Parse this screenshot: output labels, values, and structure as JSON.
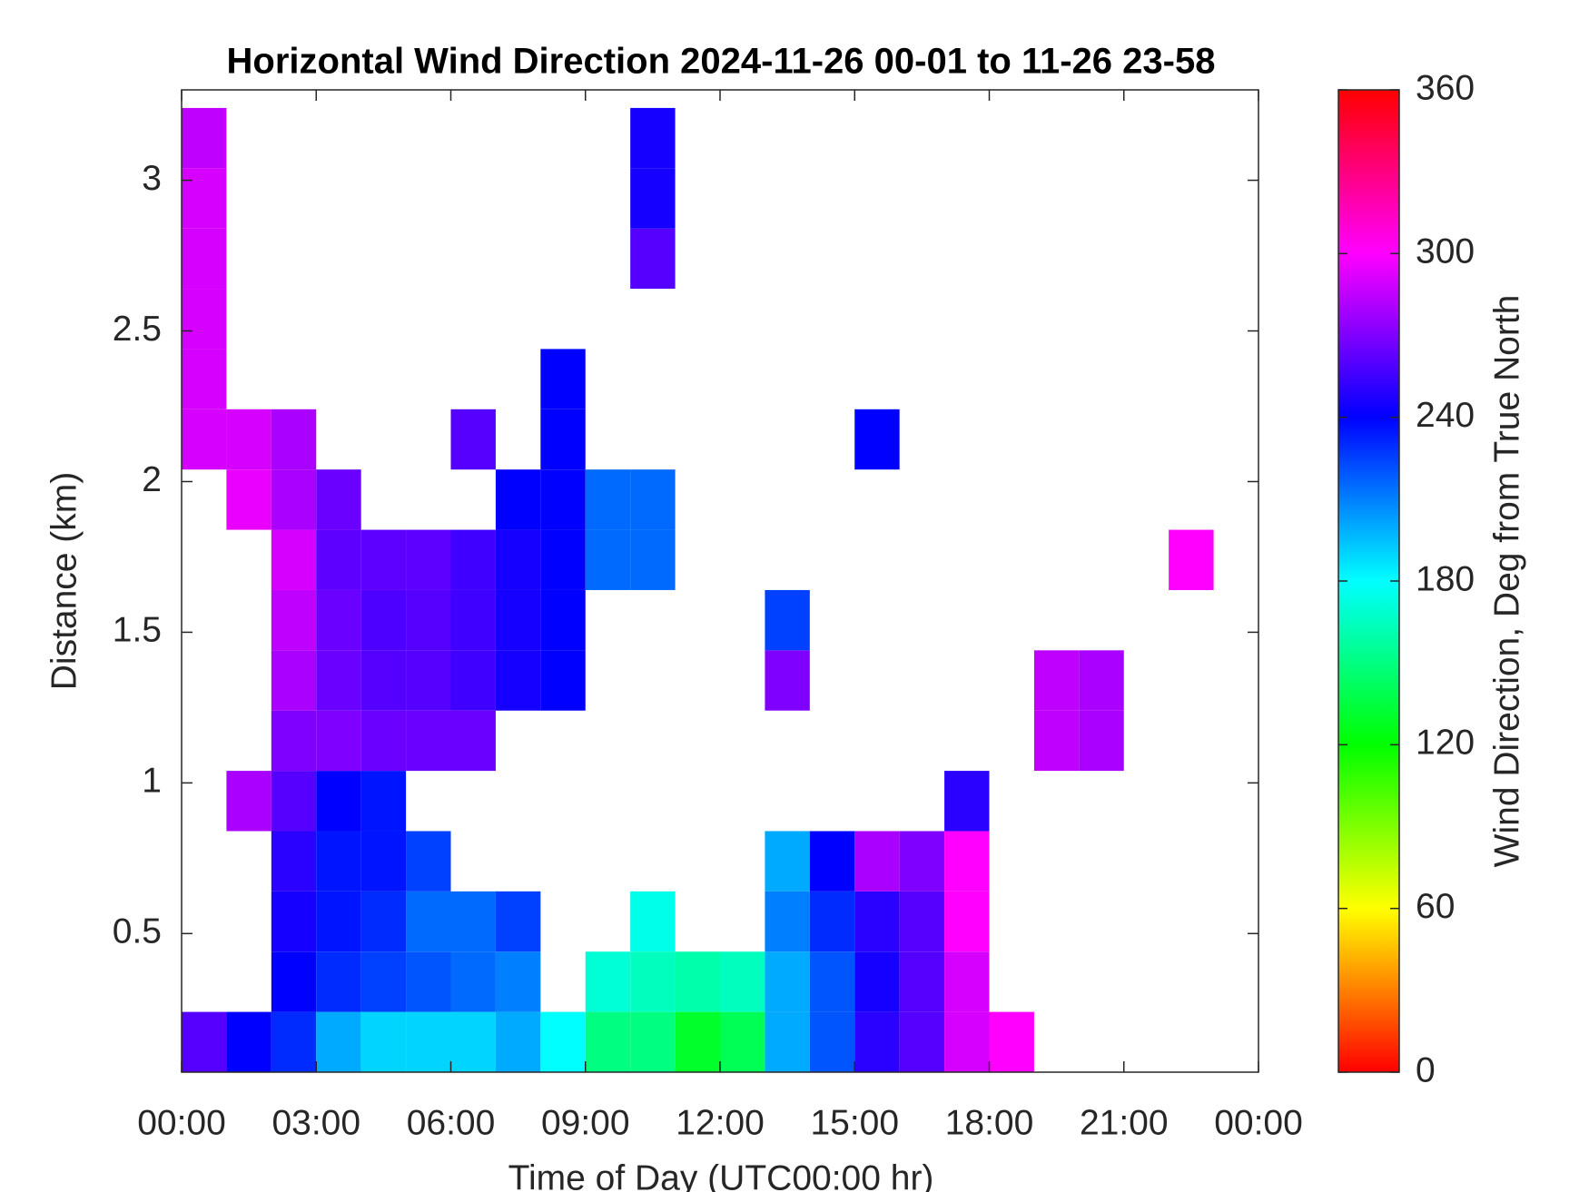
{
  "chart_data": {
    "type": "heatmap",
    "title": "Horizontal Wind Direction 2024-11-26 00-01 to 11-26 23-58",
    "x_label": "Time of Day (UTC00:00 hr)",
    "y_label": "Distance (km)",
    "colorbar_label": "Wind Direction, Deg from True North",
    "colormap": "hsv",
    "xlim": [
      0,
      24
    ],
    "xticks": [
      {
        "value": 0,
        "label": "00:00"
      },
      {
        "value": 3,
        "label": "03:00"
      },
      {
        "value": 6,
        "label": "06:00"
      },
      {
        "value": 9,
        "label": "09:00"
      },
      {
        "value": 12,
        "label": "12:00"
      },
      {
        "value": 15,
        "label": "15:00"
      },
      {
        "value": 18,
        "label": "18:00"
      },
      {
        "value": 21,
        "label": "21:00"
      },
      {
        "value": 24,
        "label": "00:00"
      }
    ],
    "ylim": [
      0.04,
      3.3
    ],
    "yticks": [
      0.5,
      1,
      1.5,
      2,
      2.5,
      3
    ],
    "clim": [
      0,
      360
    ],
    "cticks": [
      0,
      60,
      120,
      180,
      240,
      300,
      360
    ],
    "x": [
      0.5,
      1.5,
      2.5,
      3.5,
      4.5,
      5.5,
      6.5,
      7.5,
      8.5,
      9.5,
      10.5,
      11.5,
      12.5,
      13.5,
      14.5,
      15.5,
      16.5,
      17.5,
      18.5,
      19.5,
      20.5,
      21.5,
      22.5,
      23.5
    ],
    "y": [
      0.14,
      0.34,
      0.54,
      0.74,
      0.94,
      1.14,
      1.34,
      1.54,
      1.74,
      1.94,
      2.14,
      2.34,
      2.54,
      2.74,
      2.94,
      3.14
    ],
    "values": [
      [
        260,
        240,
        230,
        200,
        190,
        190,
        190,
        200,
        180,
        150,
        150,
        130,
        140,
        200,
        220,
        250,
        260,
        290,
        300,
        null,
        null,
        null,
        null,
        null
      ],
      [
        null,
        null,
        240,
        230,
        225,
        220,
        215,
        210,
        null,
        170,
        165,
        160,
        165,
        200,
        220,
        245,
        260,
        290,
        null,
        null,
        null,
        null,
        null,
        null
      ],
      [
        null,
        null,
        245,
        235,
        230,
        215,
        215,
        225,
        null,
        null,
        175,
        null,
        null,
        210,
        230,
        250,
        260,
        300,
        null,
        null,
        null,
        null,
        null,
        null
      ],
      [
        null,
        null,
        250,
        235,
        235,
        225,
        null,
        null,
        null,
        null,
        null,
        null,
        null,
        200,
        240,
        280,
        270,
        300,
        null,
        null,
        null,
        null,
        null,
        null
      ],
      [
        null,
        280,
        260,
        240,
        235,
        null,
        null,
        null,
        null,
        null,
        null,
        null,
        null,
        null,
        null,
        null,
        null,
        250,
        null,
        null,
        null,
        null,
        null,
        null
      ],
      [
        null,
        null,
        270,
        270,
        265,
        265,
        265,
        null,
        null,
        null,
        null,
        null,
        null,
        null,
        null,
        null,
        null,
        null,
        null,
        285,
        280,
        null,
        null,
        null
      ],
      [
        null,
        null,
        280,
        265,
        260,
        260,
        255,
        245,
        240,
        null,
        null,
        null,
        null,
        270,
        null,
        null,
        null,
        null,
        null,
        285,
        280,
        null,
        null,
        null
      ],
      [
        null,
        null,
        285,
        265,
        258,
        260,
        255,
        245,
        240,
        null,
        null,
        null,
        null,
        225,
        null,
        null,
        null,
        null,
        null,
        null,
        null,
        null,
        null,
        null
      ],
      [
        null,
        null,
        290,
        262,
        262,
        262,
        255,
        245,
        240,
        215,
        215,
        null,
        null,
        null,
        null,
        null,
        null,
        null,
        null,
        null,
        null,
        null,
        300,
        null
      ],
      [
        null,
        295,
        280,
        265,
        null,
        null,
        null,
        240,
        240,
        215,
        215,
        null,
        null,
        null,
        null,
        null,
        null,
        null,
        null,
        null,
        null,
        null,
        null,
        null
      ],
      [
        290,
        290,
        280,
        null,
        null,
        null,
        260,
        null,
        240,
        null,
        null,
        null,
        null,
        null,
        null,
        240,
        null,
        null,
        null,
        null,
        null,
        null,
        null,
        null
      ],
      [
        290,
        null,
        null,
        null,
        null,
        null,
        null,
        null,
        240,
        null,
        null,
        null,
        null,
        null,
        null,
        null,
        null,
        null,
        null,
        null,
        null,
        null,
        null,
        null
      ],
      [
        290,
        null,
        null,
        null,
        null,
        null,
        null,
        null,
        null,
        null,
        null,
        null,
        null,
        null,
        null,
        null,
        null,
        null,
        null,
        null,
        null,
        null,
        null,
        null
      ],
      [
        290,
        null,
        null,
        null,
        null,
        null,
        null,
        null,
        null,
        null,
        260,
        null,
        null,
        null,
        null,
        null,
        null,
        null,
        null,
        null,
        null,
        null,
        null,
        null
      ],
      [
        290,
        null,
        null,
        null,
        null,
        null,
        null,
        null,
        null,
        null,
        245,
        null,
        null,
        null,
        null,
        null,
        null,
        null,
        null,
        null,
        null,
        null,
        null,
        null
      ],
      [
        285,
        null,
        null,
        null,
        null,
        null,
        null,
        null,
        null,
        null,
        245,
        null,
        null,
        null,
        null,
        null,
        null,
        null,
        null,
        null,
        null,
        null,
        null,
        null
      ]
    ]
  }
}
